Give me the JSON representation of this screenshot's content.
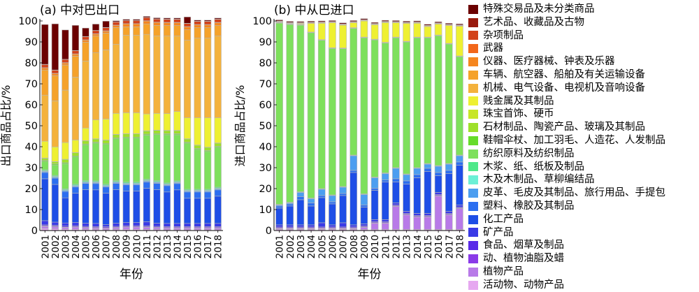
{
  "chart_data": [
    {
      "type": "bar",
      "stacked": true,
      "title": "(a) 中对巴出口",
      "xlabel": "年份",
      "ylabel": "出口商品占比/%",
      "ylim": [
        0,
        100
      ],
      "yticks": [
        0,
        10,
        20,
        30,
        40,
        50,
        60,
        70,
        80,
        90,
        100
      ],
      "categories": [
        "2001",
        "2002",
        "2003",
        "2004",
        "2005",
        "2006",
        "2007",
        "2008",
        "2009",
        "2010",
        "2011",
        "2012",
        "2013",
        "2014",
        "2015",
        "2016",
        "2017",
        "2018"
      ],
      "series": [
        {
          "name": "活动物、动物产品",
          "values": [
            1,
            0.8,
            0.6,
            0.6,
            0.5,
            0.5,
            0.4,
            0.5,
            0.6,
            0.6,
            0.5,
            0.5,
            0.4,
            0.4,
            0.4,
            0.4,
            0.4,
            0.4
          ]
        },
        {
          "name": "植物产品",
          "values": [
            1,
            1,
            0.8,
            1,
            0.8,
            0.7,
            0.7,
            0.8,
            1,
            1,
            1,
            0.8,
            0.8,
            0.8,
            0.8,
            0.8,
            0.8,
            0.8
          ]
        },
        {
          "name": "动、植物油脂及蜡",
          "values": [
            0.2,
            0.2,
            0.2,
            0.2,
            0.2,
            0.2,
            0.2,
            0.2,
            0.2,
            0.2,
            0.2,
            0.2,
            0.2,
            0.2,
            0.2,
            0.2,
            0.2,
            0.2
          ]
        },
        {
          "name": "食品、烟草及制品",
          "values": [
            0.5,
            0.5,
            0.5,
            0.5,
            0.5,
            0.5,
            0.5,
            0.5,
            0.5,
            0.5,
            0.5,
            0.5,
            0.5,
            0.5,
            0.5,
            0.5,
            0.5,
            0.5
          ]
        },
        {
          "name": "矿产品",
          "values": [
            2,
            1.5,
            1.5,
            1.5,
            1.5,
            1.5,
            1,
            1.5,
            1.5,
            1.5,
            2,
            1.5,
            1.5,
            1.5,
            1.5,
            1.5,
            1.5,
            1.5
          ]
        },
        {
          "name": "化工产品",
          "values": [
            20,
            18,
            12,
            14,
            16,
            16,
            15,
            16,
            15,
            15,
            16,
            16,
            15,
            16,
            12,
            12,
            12,
            13
          ]
        },
        {
          "name": "塑料、橡胶及其制品",
          "values": [
            3,
            3,
            3,
            3,
            3,
            3,
            3,
            3,
            3,
            3,
            3,
            3,
            3,
            3,
            3,
            3,
            3,
            3
          ]
        },
        {
          "name": "皮革、毛皮及其制品、旅行用品、手提包",
          "values": [
            0.5,
            0.5,
            0.5,
            0.5,
            0.5,
            0.5,
            0.5,
            0.5,
            0.5,
            0.5,
            0.5,
            0.5,
            0.5,
            0.5,
            0.5,
            0.5,
            0.5,
            0.5
          ]
        },
        {
          "name": "木及木制品、草柳编结品",
          "values": [
            0.3,
            0.3,
            0.3,
            0.3,
            0.3,
            0.3,
            0.3,
            0.3,
            0.3,
            0.3,
            0.3,
            0.3,
            0.3,
            0.3,
            0.3,
            0.3,
            0.3,
            0.3
          ]
        },
        {
          "name": "木浆、纸、纸板及制品",
          "values": [
            0.5,
            0.5,
            0.5,
            0.5,
            0.5,
            0.5,
            0.5,
            0.5,
            0.5,
            0.5,
            0.5,
            0.5,
            0.5,
            0.5,
            0.5,
            0.5,
            0.5,
            0.5
          ]
        },
        {
          "name": "纺织原料及纺织制品",
          "values": [
            4,
            5,
            12,
            13,
            17,
            18,
            19,
            20,
            21,
            21,
            21,
            22,
            23,
            22,
            22,
            19,
            18,
            19
          ]
        },
        {
          "name": "鞋帽伞杖、加工羽毛、人造花、人发制品",
          "values": [
            0.5,
            0.5,
            0.5,
            0.5,
            0.5,
            0.5,
            0.5,
            0.5,
            0.5,
            0.5,
            0.5,
            0.5,
            0.5,
            0.5,
            0.5,
            0.5,
            0.5,
            0.5
          ]
        },
        {
          "name": "石材制品、陶瓷产品、玻璃及其制品",
          "values": [
            1,
            1,
            1.5,
            1.5,
            1.5,
            1.5,
            1.5,
            1.5,
            1.5,
            1.5,
            1.5,
            1.5,
            1.5,
            1.5,
            1.5,
            1.5,
            1.5,
            1.5
          ]
        },
        {
          "name": "珠宝首饰、硬币",
          "values": [
            0.1,
            0.1,
            0.1,
            0.1,
            0.1,
            0.1,
            0.1,
            0.1,
            0.1,
            0.1,
            0.1,
            0.1,
            0.1,
            0.1,
            0.1,
            0.1,
            0.1,
            0.1
          ]
        },
        {
          "name": "贱金属及其制品",
          "values": [
            8,
            7,
            8,
            6,
            6,
            9,
            10,
            10,
            10,
            10,
            8,
            8,
            8,
            9,
            10,
            13,
            14,
            12
          ]
        },
        {
          "name": "机械、电气设备、电视机及音响设备",
          "values": [
            22,
            22,
            25,
            30,
            32,
            32,
            33,
            33,
            37,
            37,
            38,
            37,
            37,
            36,
            37,
            38,
            38,
            39
          ]
        },
        {
          "name": "车辆、航空器、船舶及有关运输设备",
          "values": [
            12,
            12,
            12,
            10,
            9,
            8,
            8,
            8,
            4,
            4,
            5,
            5,
            5,
            5,
            5,
            5,
            5,
            5
          ]
        },
        {
          "name": "仪器、医疗器械、钟表及乐器",
          "values": [
            1,
            1,
            1,
            1,
            1,
            1,
            1,
            1,
            1.4,
            1.4,
            1.4,
            1.4,
            1.4,
            1.4,
            1.4,
            1.4,
            1.4,
            1.4
          ]
        },
        {
          "name": "武器",
          "values": [
            0.1,
            0.1,
            0.1,
            0.1,
            0.1,
            0.1,
            0.1,
            0.1,
            0.1,
            0.1,
            0.1,
            0.1,
            0.1,
            0.1,
            0.1,
            0.1,
            0.1,
            0.1
          ]
        },
        {
          "name": "杂项制品",
          "values": [
            1.5,
            1.5,
            1.5,
            1.5,
            1.5,
            1.5,
            1.5,
            1.5,
            1.5,
            1.5,
            1.5,
            1.5,
            1.5,
            1.5,
            1.5,
            1.5,
            1.5,
            1.5
          ]
        },
        {
          "name": "艺术品、收藏品及古物",
          "values": [
            0.1,
            0.1,
            0.1,
            0.1,
            0.1,
            0.1,
            0.1,
            0.1,
            0.1,
            0.1,
            0.1,
            0.1,
            0.1,
            0.1,
            0.1,
            0.1,
            0.1,
            0.1
          ]
        },
        {
          "name": "特殊交易品及未分类商品",
          "values": [
            19,
            22,
            14,
            12,
            4,
            3,
            3,
            0.5,
            0.5,
            0.5,
            0.5,
            0.5,
            0.5,
            0.5,
            3,
            0.5,
            0.5,
            0.5
          ]
        }
      ]
    },
    {
      "type": "bar",
      "stacked": true,
      "title": "(b) 中从巴进口",
      "xlabel": "年份",
      "ylabel": "进口商品占比/%",
      "ylim": [
        0,
        100
      ],
      "yticks": [
        0,
        10,
        20,
        30,
        40,
        50,
        60,
        70,
        80,
        90,
        100
      ],
      "categories": [
        "2001",
        "2002",
        "2003",
        "2004",
        "2005",
        "2006",
        "2007",
        "2008",
        "2009",
        "2010",
        "2011",
        "2012",
        "2013",
        "2014",
        "2015",
        "2016",
        "2017",
        "2018"
      ],
      "series": [
        {
          "name": "活动物、动物产品",
          "values": [
            0.5,
            0.5,
            0.5,
            0.5,
            0.5,
            0.5,
            0.5,
            0.5,
            0.5,
            0.5,
            0.5,
            0.5,
            0.5,
            0.5,
            0.5,
            0.5,
            0.5,
            0.5
          ]
        },
        {
          "name": "植物产品",
          "values": [
            0.5,
            0.5,
            0.5,
            0.5,
            0.5,
            0.5,
            0.5,
            0.5,
            1,
            3,
            3,
            11,
            7,
            6,
            6,
            16,
            7,
            10
          ]
        },
        {
          "name": "动、植物油脂及蜡",
          "values": [
            0.2,
            0.2,
            0.2,
            0.2,
            0.2,
            0.2,
            0.2,
            0.2,
            0.2,
            0.2,
            0.2,
            0.2,
            0.2,
            0.2,
            0.2,
            0.2,
            0.2,
            0.2
          ]
        },
        {
          "name": "食品、烟草及制品",
          "values": [
            0.5,
            0.5,
            0.5,
            0.5,
            0.5,
            0.5,
            0.5,
            0.5,
            0.5,
            0.5,
            0.5,
            0.5,
            0.5,
            0.5,
            0.5,
            0.5,
            0.5,
            0.5
          ]
        },
        {
          "name": "矿产品",
          "values": [
            1,
            1,
            1,
            1,
            2,
            1,
            2,
            1,
            1,
            1,
            1,
            1,
            1,
            1,
            1,
            1,
            1,
            1
          ]
        },
        {
          "name": "化工产品",
          "values": [
            8,
            9,
            12,
            9,
            12,
            10,
            13,
            25,
            8,
            14,
            18,
            10,
            13,
            17,
            20,
            8,
            18,
            19
          ]
        },
        {
          "name": "塑料、橡胶及其制品",
          "values": [
            1,
            1,
            1.5,
            1.5,
            1,
            1,
            1,
            1,
            1,
            1,
            1,
            1.5,
            1.5,
            1.5,
            1.5,
            1.5,
            1.5,
            1.5
          ]
        },
        {
          "name": "皮革、毛皮及其制品、旅行用品、手提包",
          "values": [
            0.5,
            0.5,
            2,
            2,
            3,
            3,
            3,
            7,
            5,
            5,
            3,
            5,
            3,
            3,
            2,
            3,
            3,
            3
          ]
        },
        {
          "name": "木及木制品、草柳编结品",
          "values": [
            0.1,
            0.1,
            0.1,
            0.1,
            0.1,
            0.1,
            0.1,
            0.1,
            0.1,
            0.1,
            0.1,
            0.1,
            0.1,
            0.1,
            0.1,
            0.1,
            0.1,
            0.1
          ]
        },
        {
          "name": "木浆、纸、纸板及制品",
          "values": [
            0.2,
            0.2,
            0.2,
            0.2,
            0.2,
            0.2,
            0.2,
            0.2,
            0.2,
            0.2,
            0.2,
            0.2,
            0.2,
            0.2,
            0.2,
            0.2,
            0.2,
            0.2
          ]
        },
        {
          "name": "纺织原料及纺织制品",
          "values": [
            86.5,
            84.8,
            79.5,
            78.9,
            70.8,
            69.9,
            65.8,
            60.5,
            74.5,
            65.5,
            62,
            62,
            63,
            62,
            60,
            62,
            57,
            47
          ]
        },
        {
          "name": "鞋帽伞杖、加工羽毛、人造花、人发制品",
          "values": [
            0.1,
            0.1,
            0.1,
            0.1,
            0.1,
            0.1,
            0.1,
            0.1,
            0.1,
            0.1,
            0.1,
            0.1,
            0.1,
            0.1,
            0.1,
            0.1,
            0.1,
            0.1
          ]
        },
        {
          "name": "石材制品、陶瓷产品、玻璃及其制品",
          "values": [
            0.1,
            0.1,
            0.1,
            0.1,
            0.1,
            0.1,
            0.1,
            0.1,
            0.1,
            0.1,
            0.1,
            0.1,
            0.1,
            0.1,
            0.1,
            0.1,
            0.1,
            0.1
          ]
        },
        {
          "name": "珠宝首饰、硬币",
          "values": [
            0.1,
            0.1,
            0.1,
            0.1,
            0.1,
            0.1,
            0.1,
            0.1,
            0.1,
            0.1,
            0.1,
            0.1,
            0.1,
            0.1,
            0.1,
            0.1,
            0.1,
            0.1
          ]
        },
        {
          "name": "贱金属及其制品",
          "values": [
            0.1,
            0.1,
            0.3,
            4.1,
            7.8,
            11.9,
            10.9,
            2.3,
            7.7,
            6.9,
            9.4,
            6.8,
            8.5,
            6.6,
            5,
            5.2,
            8.5,
            14.2
          ]
        },
        {
          "name": "机械、电气设备、电视机及音响设备",
          "values": [
            0.3,
            0.3,
            0.3,
            0.3,
            0.3,
            0.3,
            0.3,
            0.3,
            0.3,
            0.3,
            0.3,
            0.3,
            0.3,
            0.3,
            0.3,
            0.3,
            0.3,
            0.3
          ]
        },
        {
          "name": "车辆、航空器、船舶及有关运输设备",
          "values": [
            0.1,
            0.1,
            0.1,
            0.1,
            0.1,
            0.1,
            0.1,
            0.1,
            0.1,
            0.1,
            0.1,
            0.1,
            0.1,
            0.1,
            0.1,
            0.1,
            0.1,
            0.1
          ]
        },
        {
          "name": "仪器、医疗器械、钟表及乐器",
          "values": [
            0.1,
            0.1,
            0.1,
            0.1,
            0.1,
            0.1,
            0.1,
            0.1,
            0.1,
            0.1,
            0.1,
            0.1,
            0.1,
            0.1,
            0.1,
            0.1,
            0.1,
            0.1
          ]
        },
        {
          "name": "武器",
          "values": [
            0,
            0,
            0,
            0,
            0,
            0,
            0,
            0,
            0,
            0,
            0,
            0,
            0,
            0,
            0,
            0,
            0,
            0
          ]
        },
        {
          "name": "杂项制品",
          "values": [
            0.1,
            0.1,
            0.1,
            0.1,
            0.1,
            0.1,
            0.1,
            0.1,
            0.1,
            0.1,
            0.1,
            0.1,
            0.1,
            0.1,
            0.1,
            0.1,
            0.1,
            0.1
          ]
        },
        {
          "name": "艺术品、收藏品及古物",
          "values": [
            0,
            0,
            0,
            0,
            0,
            0,
            0,
            0,
            0,
            0,
            0,
            0,
            0,
            0,
            0,
            0,
            0,
            0
          ]
        },
        {
          "name": "特殊交易品及未分类商品",
          "values": [
            0.5,
            0.5,
            0.5,
            0.5,
            0.5,
            0.5,
            0.5,
            0.5,
            0.5,
            0.5,
            0.5,
            0.5,
            0.5,
            0.5,
            0.5,
            0.5,
            0.5,
            0.5
          ]
        }
      ]
    }
  ],
  "legend": {
    "placement": "right",
    "items": [
      {
        "label": "特殊交易品及未分类商品",
        "color": "#6b0000"
      },
      {
        "label": "艺术品、收藏品及古物",
        "color": "#991a0d"
      },
      {
        "label": "杂项制品",
        "color": "#d2421a"
      },
      {
        "label": "武器",
        "color": "#f2671a"
      },
      {
        "label": "仪器、医疗器械、钟表及乐器",
        "color": "#f5861f"
      },
      {
        "label": "车辆、航空器、船舶及有关运输设备",
        "color": "#f5a22a"
      },
      {
        "label": "机械、电气设备、电视机及音响设备",
        "color": "#f4b23c"
      },
      {
        "label": "贱金属及其制品",
        "color": "#eef032"
      },
      {
        "label": "珠宝首饰、硬币",
        "color": "#c8e628"
      },
      {
        "label": "石材制品、陶瓷产品、玻璃及其制品",
        "color": "#9ee02a"
      },
      {
        "label": "鞋帽伞杖、加工羽毛、人造花、人发制品",
        "color": "#66dc2a"
      },
      {
        "label": "纺织原料及纺织制品",
        "color": "#7ee05c"
      },
      {
        "label": "木浆、纸、纸板及制品",
        "color": "#4fe88a"
      },
      {
        "label": "木及木制品、草柳编结品",
        "color": "#6cf0d6"
      },
      {
        "label": "皮革、毛皮及其制品、旅行用品、手提包",
        "color": "#4c9ef0"
      },
      {
        "label": "塑料、橡胶及其制品",
        "color": "#2c6ef0"
      },
      {
        "label": "化工产品",
        "color": "#1e4ee6"
      },
      {
        "label": "矿产品",
        "color": "#3a3ae6"
      },
      {
        "label": "食品、烟草及制品",
        "color": "#5a2ae8"
      },
      {
        "label": "动、植物油脂及蜡",
        "color": "#8a3ae8"
      },
      {
        "label": "植物产品",
        "color": "#b87ae8"
      },
      {
        "label": "活动物、动物产品",
        "color": "#e6a8f0"
      }
    ]
  }
}
